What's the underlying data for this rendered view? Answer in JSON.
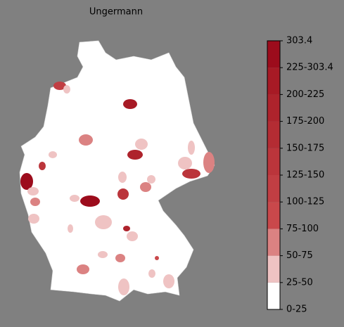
{
  "title": "Ungermann",
  "legend": {
    "labels": [
      "0-25",
      "25-50",
      "50-75",
      "75-100",
      "100-125",
      "125-150",
      "150-175",
      "175-200",
      "200-225",
      "225-303.4",
      "303.4"
    ],
    "colors": [
      "#ffffff",
      "#efc3c3",
      "#db8282",
      "#c9484b",
      "#c13e43",
      "#bb353b",
      "#b42c33",
      "#ae232c",
      "#a71a25",
      "#9c0c1c"
    ]
  }
}
